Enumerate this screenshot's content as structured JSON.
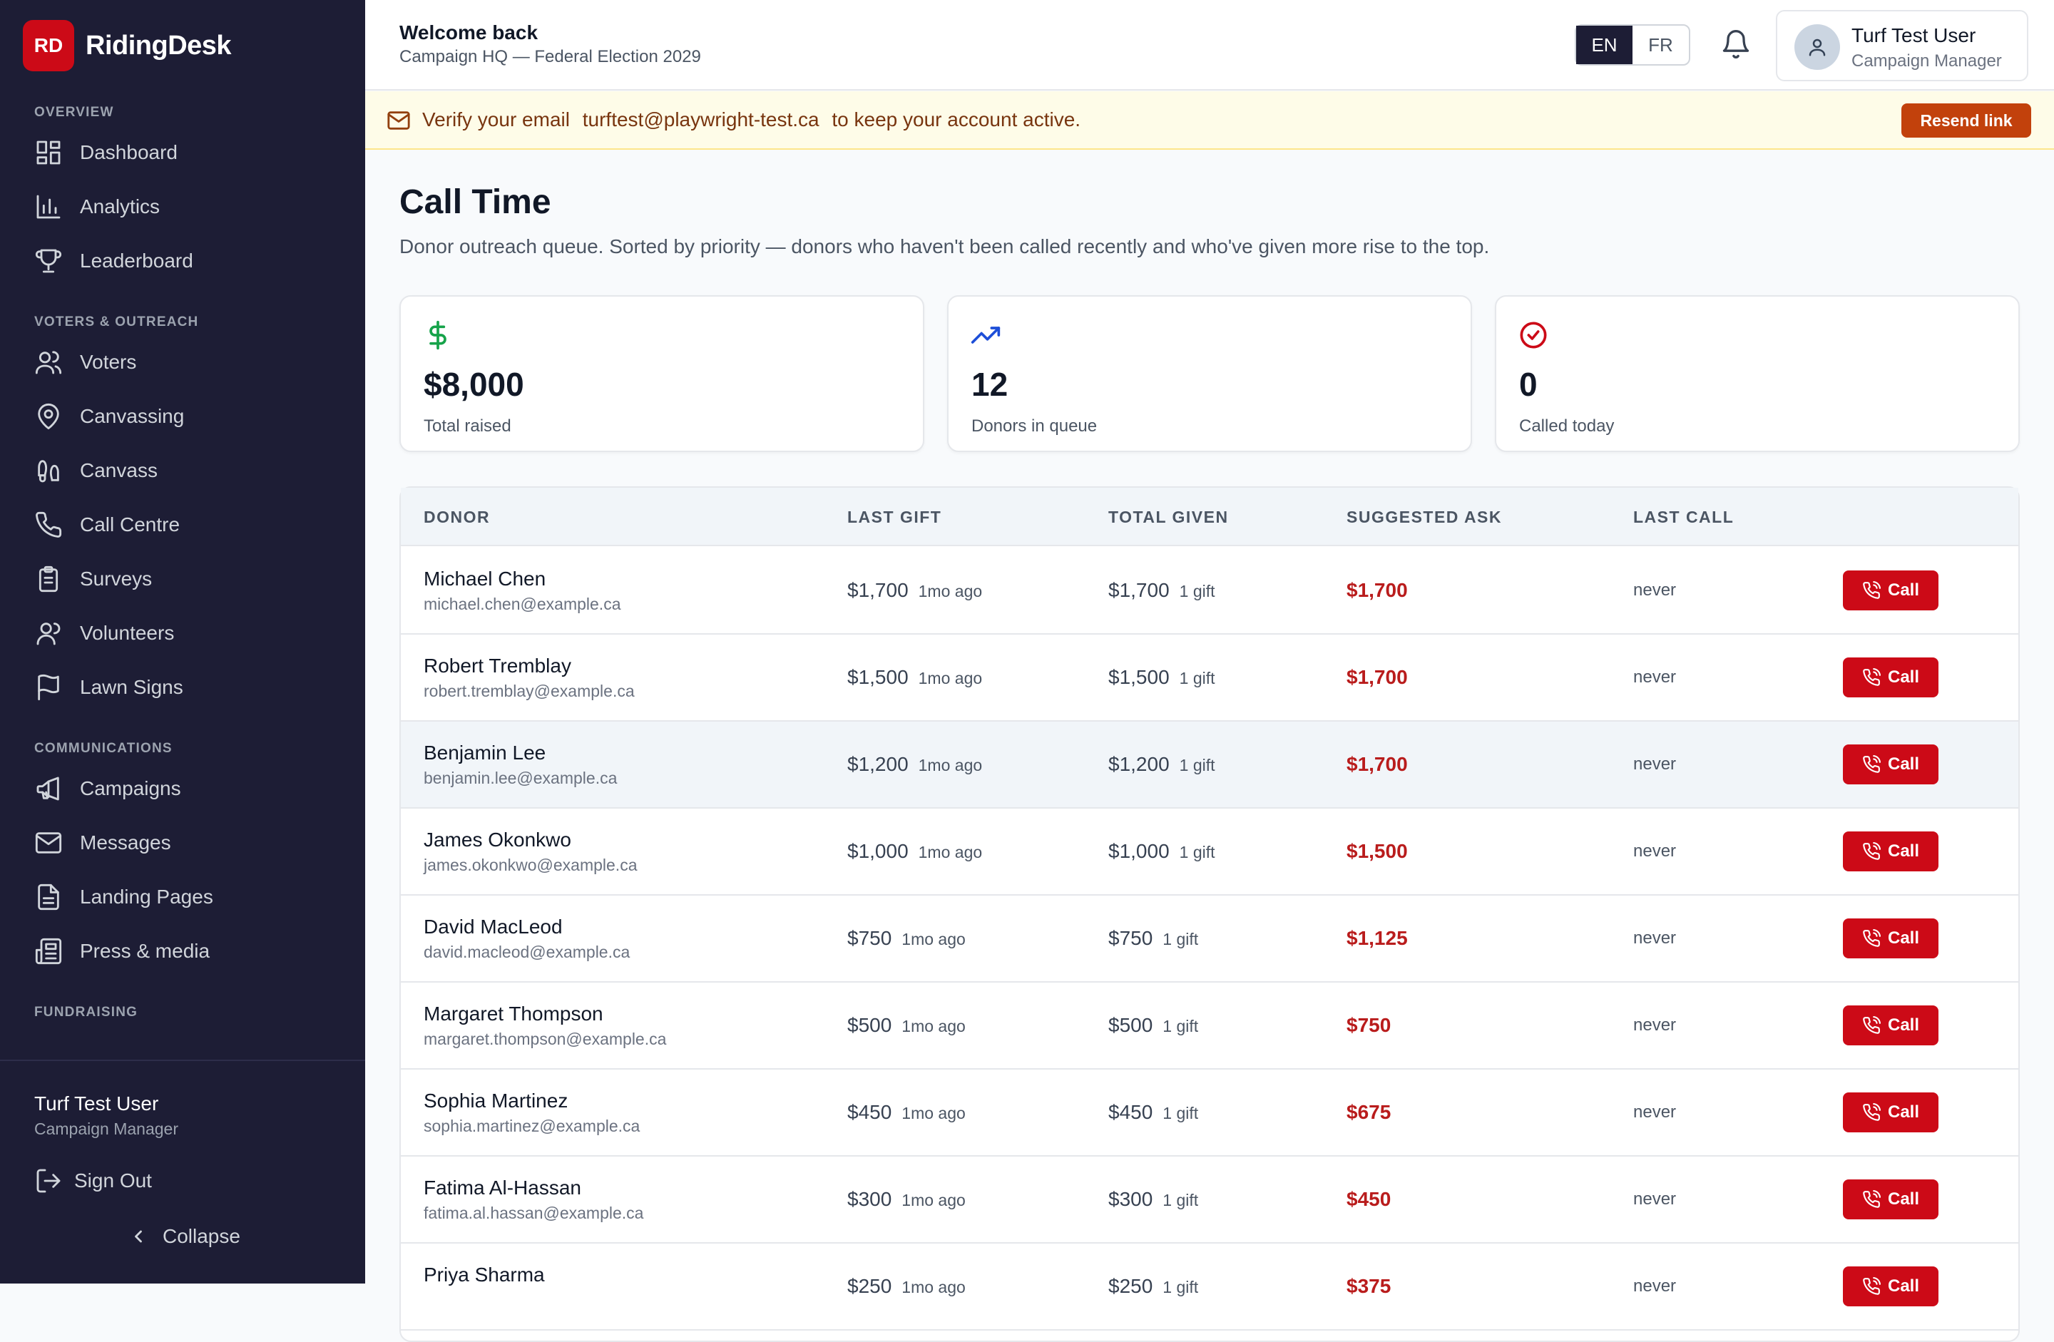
{
  "brand": {
    "logo": "RD",
    "name": "RidingDesk"
  },
  "sidebar": {
    "sections": [
      {
        "title": "OVERVIEW",
        "items": [
          {
            "label": "Dashboard",
            "icon": "dashboard-icon"
          },
          {
            "label": "Analytics",
            "icon": "bar-chart-icon"
          },
          {
            "label": "Leaderboard",
            "icon": "trophy-icon"
          }
        ]
      },
      {
        "title": "VOTERS & OUTREACH",
        "items": [
          {
            "label": "Voters",
            "icon": "users-icon"
          },
          {
            "label": "Canvassing",
            "icon": "map-pin-icon"
          },
          {
            "label": "Canvass",
            "icon": "footprints-icon"
          },
          {
            "label": "Call Centre",
            "icon": "phone-icon"
          },
          {
            "label": "Surveys",
            "icon": "clipboard-icon"
          },
          {
            "label": "Volunteers",
            "icon": "volunteers-icon"
          },
          {
            "label": "Lawn Signs",
            "icon": "flag-icon"
          }
        ]
      },
      {
        "title": "COMMUNICATIONS",
        "items": [
          {
            "label": "Campaigns",
            "icon": "megaphone-icon"
          },
          {
            "label": "Messages",
            "icon": "mail-icon"
          },
          {
            "label": "Landing Pages",
            "icon": "file-text-icon"
          },
          {
            "label": "Press & media",
            "icon": "newspaper-icon"
          }
        ]
      },
      {
        "title": "FUNDRAISING",
        "items": []
      }
    ],
    "user": {
      "name": "Turf Test User",
      "role": "Campaign Manager"
    },
    "sign_out": "Sign Out",
    "collapse": "Collapse"
  },
  "header": {
    "title": "Welcome back",
    "subtitle": "Campaign HQ — Federal Election 2029",
    "lang": {
      "en": "EN",
      "fr": "FR",
      "active": "EN"
    },
    "user": {
      "name": "Turf Test User",
      "role": "Campaign Manager"
    }
  },
  "banner": {
    "before": "Verify your email",
    "email": "turftest@playwright-test.ca",
    "after": "to keep your account active.",
    "button": "Resend link"
  },
  "page": {
    "title": "Call Time",
    "description": "Donor outreach queue. Sorted by priority — donors who haven't been called recently and who've given more rise to the top."
  },
  "stats": [
    {
      "value": "$8,000",
      "label": "Total raised",
      "icon": "dollar-icon",
      "color": "#16a34a"
    },
    {
      "value": "12",
      "label": "Donors in queue",
      "icon": "trending-up-icon",
      "color": "#1d4ed8"
    },
    {
      "value": "0",
      "label": "Called today",
      "icon": "check-circle-icon",
      "color": "#cc0a17"
    }
  ],
  "table": {
    "columns": {
      "donor": "DONOR",
      "last_gift": "LAST GIFT",
      "total_given": "TOTAL GIVEN",
      "suggested_ask": "SUGGESTED ASK",
      "last_call": "LAST CALL"
    },
    "call_label": "Call",
    "rows": [
      {
        "name": "Michael Chen",
        "email": "michael.chen@example.ca",
        "last_gift": "$1,700",
        "last_gift_ago": "1mo ago",
        "total": "$1,700",
        "gifts": "1 gift",
        "ask": "$1,700",
        "last_call": "never"
      },
      {
        "name": "Robert Tremblay",
        "email": "robert.tremblay@example.ca",
        "last_gift": "$1,500",
        "last_gift_ago": "1mo ago",
        "total": "$1,500",
        "gifts": "1 gift",
        "ask": "$1,700",
        "last_call": "never"
      },
      {
        "name": "Benjamin Lee",
        "email": "benjamin.lee@example.ca",
        "last_gift": "$1,200",
        "last_gift_ago": "1mo ago",
        "total": "$1,200",
        "gifts": "1 gift",
        "ask": "$1,700",
        "last_call": "never",
        "highlighted": true
      },
      {
        "name": "James Okonkwo",
        "email": "james.okonkwo@example.ca",
        "last_gift": "$1,000",
        "last_gift_ago": "1mo ago",
        "total": "$1,000",
        "gifts": "1 gift",
        "ask": "$1,500",
        "last_call": "never"
      },
      {
        "name": "David MacLeod",
        "email": "david.macleod@example.ca",
        "last_gift": "$750",
        "last_gift_ago": "1mo ago",
        "total": "$750",
        "gifts": "1 gift",
        "ask": "$1,125",
        "last_call": "never"
      },
      {
        "name": "Margaret Thompson",
        "email": "margaret.thompson@example.ca",
        "last_gift": "$500",
        "last_gift_ago": "1mo ago",
        "total": "$500",
        "gifts": "1 gift",
        "ask": "$750",
        "last_call": "never"
      },
      {
        "name": "Sophia Martinez",
        "email": "sophia.martinez@example.ca",
        "last_gift": "$450",
        "last_gift_ago": "1mo ago",
        "total": "$450",
        "gifts": "1 gift",
        "ask": "$675",
        "last_call": "never"
      },
      {
        "name": "Fatima Al-Hassan",
        "email": "fatima.al.hassan@example.ca",
        "last_gift": "$300",
        "last_gift_ago": "1mo ago",
        "total": "$300",
        "gifts": "1 gift",
        "ask": "$450",
        "last_call": "never"
      },
      {
        "name": "Priya Sharma",
        "email": "",
        "last_gift": "$250",
        "last_gift_ago": "1mo ago",
        "total": "$250",
        "gifts": "1 gift",
        "ask": "$375",
        "last_call": "never"
      }
    ]
  }
}
